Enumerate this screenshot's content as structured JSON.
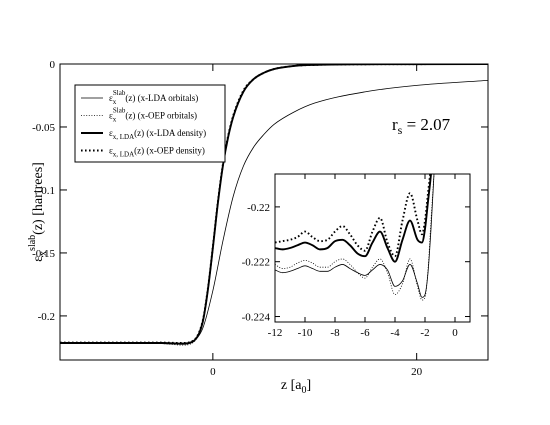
{
  "chart_data": [
    {
      "type": "line",
      "title": "",
      "xlabel": "z [a0]",
      "xlabel_main": "z",
      "xlabel_unit": "a",
      "xlabel_unit_sub": "0",
      "ylabel": "εx slab(z) [hartrees]",
      "ylabel_sym": "ε",
      "ylabel_sub": "x",
      "ylabel_sup": "slab",
      "ylabel_rest": "(z)  [hartrees]",
      "xlim": [
        -15,
        27
      ],
      "ylim": [
        -0.235,
        0.0
      ],
      "x_ticks": [
        "0",
        "20"
      ],
      "y_ticks": [
        "0",
        "-0.05",
        "-0.1",
        "-0.15",
        "-0.2"
      ],
      "annotation": {
        "main": "r",
        "sub": "s",
        "rest": " = 2.07"
      },
      "legend_position": "top-left",
      "series": [
        {
          "name": "εxSlab(z) (x-LDA orbitals)",
          "sym": "ε",
          "sub": "x",
          "sup": "Slab",
          "rest": "(z) (x-LDA orbitals)",
          "style": "thin-solid",
          "x": [
            -15,
            -5,
            -3,
            -2,
            -1,
            0,
            1,
            2,
            3,
            4,
            5,
            6,
            8,
            10,
            15,
            20,
            27
          ],
          "y": [
            -0.222,
            -0.222,
            -0.2225,
            -0.2205,
            -0.21,
            -0.18,
            -0.14,
            -0.105,
            -0.081,
            -0.066,
            -0.056,
            -0.048,
            -0.038,
            -0.031,
            -0.022,
            -0.017,
            -0.013
          ]
        },
        {
          "name": "εxSlab(z) (x-OEP orbitals)",
          "sym": "ε",
          "sub": "x",
          "sup": "Slab",
          "rest": "(z) (x-OEP orbitals)",
          "style": "thin-dotted",
          "x": [
            -15,
            -5,
            -3,
            -2,
            -1,
            -0.5,
            0,
            0.5,
            1,
            1.5,
            2,
            3,
            4,
            5,
            6,
            8,
            10,
            15,
            20,
            27
          ],
          "y": [
            -0.222,
            -0.222,
            -0.2232,
            -0.2215,
            -0.205,
            -0.18,
            -0.145,
            -0.11,
            -0.08,
            -0.058,
            -0.042,
            -0.022,
            -0.012,
            -0.007,
            -0.004,
            -0.0015,
            -0.0007,
            -0.0002,
            -0.0001,
            0
          ]
        },
        {
          "name": "εx, LDA(z) (x-LDA density)",
          "sym": "ε",
          "sub": "x, LDA",
          "sup": "",
          "rest": "(z) (x-LDA density)",
          "style": "thick-solid",
          "x": [
            -15,
            -5,
            -3,
            -2,
            -1,
            -0.5,
            0,
            0.5,
            1,
            1.5,
            2,
            3,
            4,
            5,
            6,
            8,
            10,
            15,
            20,
            27
          ],
          "y": [
            -0.2215,
            -0.2215,
            -0.222,
            -0.2205,
            -0.205,
            -0.18,
            -0.146,
            -0.11,
            -0.08,
            -0.058,
            -0.042,
            -0.022,
            -0.012,
            -0.007,
            -0.004,
            -0.0015,
            -0.0007,
            -0.0002,
            -0.0001,
            0
          ]
        },
        {
          "name": "εx, LDA(z) (x-OEP density)",
          "sym": "ε",
          "sub": "x, LDA",
          "sup": "",
          "rest": "(z) (x-OEP density)",
          "style": "thick-dotted",
          "x": [
            -15,
            -5,
            -3,
            -2,
            -1,
            -0.5,
            0,
            0.5,
            1,
            1.5,
            2,
            3,
            4,
            5,
            6,
            8,
            10,
            15,
            20,
            27
          ],
          "y": [
            -0.2212,
            -0.2212,
            -0.2215,
            -0.22,
            -0.204,
            -0.179,
            -0.145,
            -0.109,
            -0.079,
            -0.057,
            -0.041,
            -0.021,
            -0.012,
            -0.007,
            -0.004,
            -0.0015,
            -0.0007,
            -0.0002,
            -0.0001,
            0
          ]
        }
      ]
    },
    {
      "type": "line",
      "title": "",
      "xlabel": "",
      "ylabel": "",
      "xlim": [
        -12,
        1
      ],
      "ylim": [
        -0.2242,
        -0.2188
      ],
      "x_ticks": [
        "-12",
        "-10",
        "-8",
        "-6",
        "-4",
        "-2",
        "0"
      ],
      "y_ticks": [
        "-0.22",
        "-0.222",
        "-0.224"
      ],
      "series": [
        {
          "name": "εxSlab(z) (x-LDA orbitals)",
          "style": "thin-solid",
          "x": [
            -12,
            -11.5,
            -11,
            -10.5,
            -10,
            -9.5,
            -9,
            -8.5,
            -8,
            -7.5,
            -7,
            -6.5,
            -6,
            -5.5,
            -5,
            -4.5,
            -4,
            -3.5,
            -3,
            -2.5,
            -2.2,
            -2,
            -1.8,
            -1.6,
            -1.4
          ],
          "y": [
            -0.2223,
            -0.2224,
            -0.22235,
            -0.22225,
            -0.22215,
            -0.22225,
            -0.22235,
            -0.22235,
            -0.2222,
            -0.2221,
            -0.22225,
            -0.2224,
            -0.2225,
            -0.2223,
            -0.2221,
            -0.2223,
            -0.2229,
            -0.2227,
            -0.2221,
            -0.2228,
            -0.2233,
            -0.2232,
            -0.2224,
            -0.2208,
            -0.2188
          ]
        },
        {
          "name": "εxSlab(z) (x-OEP orbitals)",
          "style": "thin-dotted",
          "x": [
            -12,
            -11.5,
            -11,
            -10.5,
            -10,
            -9.5,
            -9,
            -8.5,
            -8,
            -7.5,
            -7,
            -6.5,
            -6,
            -5.5,
            -5,
            -4.5,
            -4,
            -3.5,
            -3,
            -2.5,
            -2.2,
            -2,
            -1.8,
            -1.6,
            -1.4
          ],
          "y": [
            -0.2221,
            -0.22225,
            -0.2222,
            -0.22205,
            -0.22195,
            -0.22205,
            -0.2222,
            -0.2222,
            -0.222,
            -0.2219,
            -0.2221,
            -0.2224,
            -0.2226,
            -0.2222,
            -0.2219,
            -0.2224,
            -0.2232,
            -0.2228,
            -0.2219,
            -0.2229,
            -0.2234,
            -0.2233,
            -0.2223,
            -0.2205,
            -0.2188
          ]
        },
        {
          "name": "εx, LDA(z) (x-LDA density)",
          "style": "thick-solid",
          "x": [
            -12,
            -11.5,
            -11,
            -10.5,
            -10,
            -9.5,
            -9,
            -8.5,
            -8,
            -7.5,
            -7,
            -6.5,
            -6,
            -5.5,
            -5,
            -4.5,
            -4,
            -3.5,
            -3,
            -2.5,
            -2.2,
            -2,
            -1.8,
            -1.6,
            -1.4
          ],
          "y": [
            -0.2215,
            -0.22155,
            -0.2215,
            -0.2214,
            -0.2213,
            -0.2214,
            -0.22155,
            -0.2215,
            -0.22125,
            -0.2212,
            -0.2214,
            -0.2217,
            -0.2218,
            -0.2213,
            -0.2209,
            -0.2215,
            -0.222,
            -0.2212,
            -0.2205,
            -0.2212,
            -0.2213,
            -0.2208,
            -0.2198,
            -0.2188,
            -0.2175
          ]
        },
        {
          "name": "εx, LDA(z) (x-OEP density)",
          "style": "thick-dotted",
          "x": [
            -12,
            -11.5,
            -11,
            -10.5,
            -10,
            -9.5,
            -9,
            -8.5,
            -8,
            -7.5,
            -7,
            -6.5,
            -6,
            -5.5,
            -5,
            -4.5,
            -4,
            -3.5,
            -3,
            -2.5,
            -2.2,
            -2,
            -1.8,
            -1.6,
            -1.4
          ],
          "y": [
            -0.2213,
            -0.22125,
            -0.2212,
            -0.2211,
            -0.2209,
            -0.2211,
            -0.22125,
            -0.2212,
            -0.2209,
            -0.2207,
            -0.221,
            -0.2214,
            -0.2216,
            -0.2209,
            -0.2204,
            -0.2213,
            -0.2218,
            -0.2205,
            -0.2195,
            -0.2205,
            -0.221,
            -0.2205,
            -0.2195,
            -0.2185,
            -0.2172
          ]
        }
      ]
    }
  ]
}
